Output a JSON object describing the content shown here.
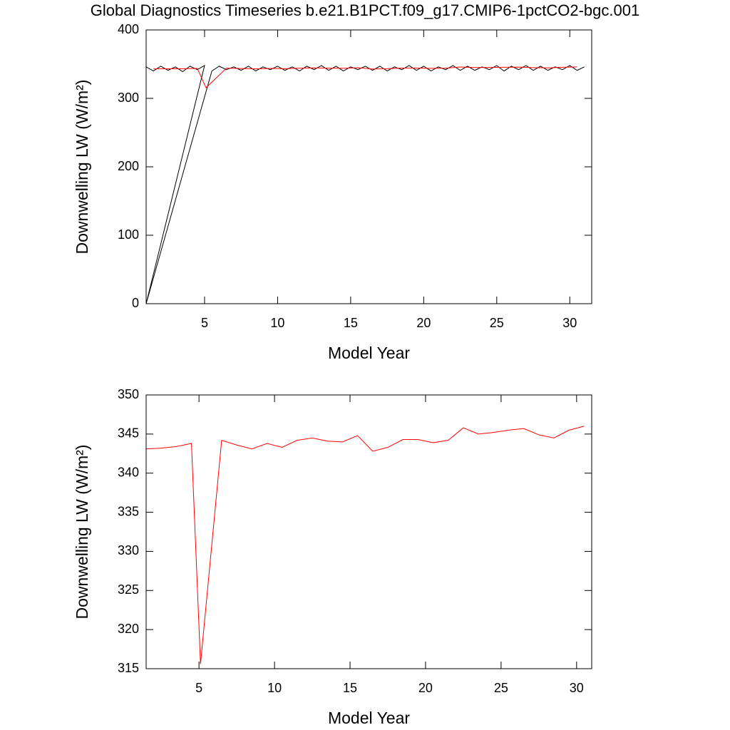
{
  "chart_data": [
    {
      "type": "line",
      "title": "Global Diagnostics Timeseries b.e21.B1PCT.f09_g17.CMIP6-1pctCO2-bgc.001",
      "xlabel": "Model Year",
      "ylabel": "Downwelling LW (W/m²)",
      "xlim": [
        1,
        31.5
      ],
      "ylim": [
        0,
        400
      ],
      "xticks": [
        5,
        10,
        15,
        20,
        25,
        30
      ],
      "yticks": [
        0,
        100,
        200,
        300,
        400
      ],
      "series": [
        {
          "color": "#000000",
          "x": [
            1,
            1.5,
            2,
            2.5,
            3,
            3.5,
            4,
            4.5,
            5,
            1,
            5.5,
            6,
            6.5,
            7,
            7.5,
            8,
            8.5,
            9,
            9.5,
            10,
            10.5,
            11,
            11.5,
            12,
            12.5,
            13,
            13.5,
            14,
            14.5,
            15,
            15.5,
            16,
            16.5,
            17,
            17.5,
            18,
            18.5,
            19,
            19.5,
            20,
            20.5,
            21,
            21.5,
            22,
            22.5,
            23,
            23.5,
            24,
            24.5,
            25,
            25.5,
            26,
            26.5,
            27,
            27.5,
            28,
            28.5,
            29,
            29.5,
            30,
            30.5,
            31
          ],
          "values": [
            346,
            340,
            347,
            341,
            346,
            339,
            347,
            342,
            348,
            0,
            340,
            347,
            342,
            346,
            341,
            347,
            340,
            346,
            342,
            347,
            341,
            346,
            340,
            347,
            342,
            348,
            341,
            347,
            340,
            346,
            342,
            347,
            341,
            347,
            340,
            346,
            342,
            348,
            341,
            347,
            340,
            346,
            342,
            348,
            341,
            347,
            341,
            346,
            342,
            348,
            340,
            347,
            342,
            348,
            341,
            347,
            341,
            346,
            342,
            348,
            341,
            346
          ]
        },
        {
          "color": "#ff0000",
          "x": [
            1.5,
            2.5,
            3.5,
            4.5,
            5.1,
            6.5,
            7.5,
            8.5,
            9.5,
            10.5,
            11.5,
            12.5,
            13.5,
            14.5,
            15.5,
            16.5,
            17.5,
            18.5,
            19.5,
            20.5,
            21.5,
            22.5,
            23.5,
            24.5,
            25.5,
            26.5,
            27.5,
            28.5,
            29.5,
            30.5
          ],
          "values": [
            343.1,
            343.2,
            343.4,
            343.8,
            315.6,
            344.2,
            343.6,
            343.1,
            343.8,
            343.3,
            344.2,
            344.5,
            344.1,
            344.0,
            344.8,
            342.8,
            343.3,
            344.3,
            344.3,
            343.9,
            344.2,
            345.8,
            345.0,
            345.2,
            345.5,
            345.7,
            344.9,
            344.5,
            345.5,
            346.0
          ]
        }
      ]
    },
    {
      "type": "line",
      "xlabel": "Model Year",
      "ylabel": "Downwelling LW (W/m²)",
      "xlim": [
        1.5,
        31
      ],
      "ylim": [
        315,
        350
      ],
      "xticks": [
        5,
        10,
        15,
        20,
        25,
        30
      ],
      "yticks": [
        315,
        320,
        325,
        330,
        335,
        340,
        345,
        350
      ],
      "series": [
        {
          "color": "#ff0000",
          "x": [
            1.5,
            2.5,
            3.5,
            4.5,
            5.1,
            6.5,
            7.5,
            8.5,
            9.5,
            10.5,
            11.5,
            12.5,
            13.5,
            14.5,
            15.5,
            16.5,
            17.5,
            18.5,
            19.5,
            20.5,
            21.5,
            22.5,
            23.5,
            24.5,
            25.5,
            26.5,
            27.5,
            28.5,
            29.5,
            30.5
          ],
          "values": [
            343.1,
            343.2,
            343.4,
            343.8,
            315.6,
            344.2,
            343.6,
            343.1,
            343.8,
            343.3,
            344.2,
            344.5,
            344.1,
            344.0,
            344.8,
            342.8,
            343.3,
            344.3,
            344.3,
            343.9,
            344.2,
            345.8,
            345.0,
            345.2,
            345.5,
            345.7,
            344.9,
            344.5,
            345.5,
            346.0
          ]
        }
      ]
    }
  ]
}
